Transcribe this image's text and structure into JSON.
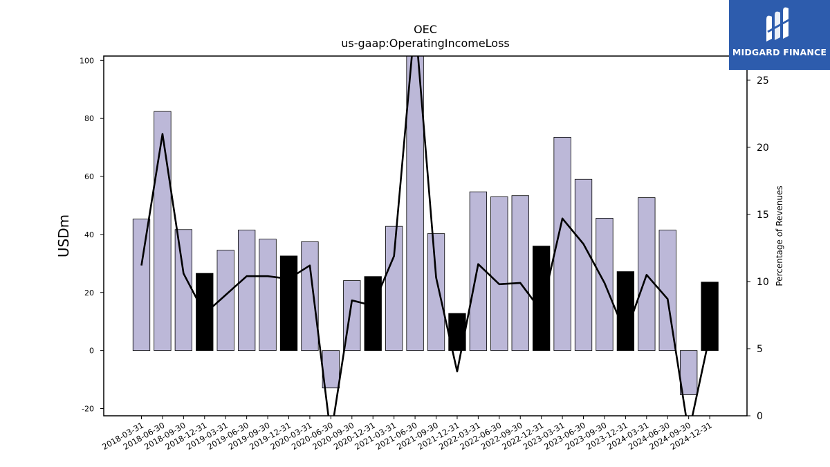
{
  "chart_data": {
    "type": "bar",
    "title": "OEC",
    "subtitle": "us-gaap:OperatingIncomeLoss",
    "ylabel": "USDm",
    "y2label": "Percentage of Revenues",
    "ylim": [
      -22.5,
      101.5
    ],
    "y2lim": [
      0,
      26.8
    ],
    "yticks": [
      -20,
      0,
      20,
      40,
      60,
      80,
      100
    ],
    "y2ticks": [
      0,
      5,
      10,
      15,
      20,
      25
    ],
    "categories": [
      "2018-03-31",
      "2018-06-30",
      "2018-09-30",
      "2018-12-31",
      "2019-03-31",
      "2019-06-30",
      "2019-09-30",
      "2019-12-31",
      "2020-03-31",
      "2020-06-30",
      "2020-09-30",
      "2020-12-31",
      "2021-03-31",
      "2021-06-30",
      "2021-09-30",
      "2021-12-31",
      "2022-03-31",
      "2022-06-30",
      "2022-09-30",
      "2022-12-31",
      "2023-03-31",
      "2023-06-30",
      "2023-09-30",
      "2023-12-31",
      "2024-03-31",
      "2024-06-30",
      "2024-09-30",
      "2024-12-31"
    ],
    "series": [
      {
        "type": "bar",
        "values": [
          45.3,
          82.4,
          41.7,
          26.6,
          34.6,
          41.5,
          38.4,
          32.6,
          37.5,
          -12.9,
          24.1,
          25.5,
          42.8,
          103.0,
          40.3,
          12.8,
          54.7,
          53.0,
          53.4,
          36.0,
          73.5,
          59.0,
          45.6,
          27.2,
          52.7,
          41.5,
          -15.2,
          23.6
        ],
        "colors": [
          "#bcb8d8",
          "#bcb8d8",
          "#bcb8d8",
          "#000000",
          "#bcb8d8",
          "#bcb8d8",
          "#bcb8d8",
          "#000000",
          "#bcb8d8",
          "#bcb8d8",
          "#bcb8d8",
          "#000000",
          "#bcb8d8",
          "#bcb8d8",
          "#bcb8d8",
          "#000000",
          "#bcb8d8",
          "#bcb8d8",
          "#bcb8d8",
          "#000000",
          "#bcb8d8",
          "#bcb8d8",
          "#bcb8d8",
          "#000000",
          "#bcb8d8",
          "#bcb8d8",
          "#bcb8d8",
          "#000000"
        ]
      },
      {
        "type": "line",
        "axis": "right",
        "color": "#000000",
        "values": [
          11.2,
          21.0,
          10.6,
          7.6,
          9.0,
          10.4,
          10.4,
          10.2,
          11.2,
          -1.5,
          8.6,
          8.2,
          11.9,
          29.5,
          10.3,
          3.3,
          11.3,
          9.8,
          9.9,
          7.8,
          14.7,
          12.8,
          9.9,
          6.1,
          10.5,
          8.7,
          -1.3,
          6.0
        ]
      }
    ],
    "grid": false
  },
  "logo": {
    "text": "MIDGARD FINANCE",
    "background": "#2d5cad"
  }
}
